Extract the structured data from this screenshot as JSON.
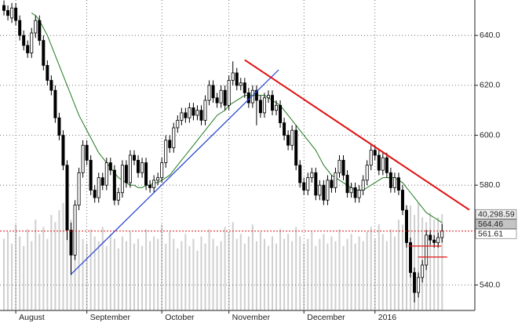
{
  "chart_data": {
    "type": "candlestick",
    "categories": [
      null,
      null,
      null,
      "August",
      null,
      null,
      null,
      null,
      null,
      null,
      null,
      null,
      null,
      null,
      null,
      null,
      null,
      null,
      null,
      null,
      null,
      "September",
      null,
      null,
      null,
      null,
      null,
      null,
      null,
      null,
      null,
      null,
      null,
      null,
      null,
      null,
      null,
      null,
      null,
      null,
      "October",
      null,
      null,
      null,
      null,
      null,
      null,
      null,
      null,
      null,
      null,
      null,
      null,
      null,
      null,
      null,
      null,
      "November",
      null,
      null,
      null,
      null,
      null,
      null,
      null,
      null,
      null,
      null,
      null,
      null,
      null,
      null,
      null,
      null,
      null,
      null,
      "December",
      null,
      null,
      null,
      null,
      null,
      null,
      null,
      null,
      null,
      null,
      null,
      null,
      null,
      null,
      null,
      null,
      null,
      "2016",
      null,
      null,
      null,
      null,
      null,
      null,
      null,
      null,
      null,
      null,
      null,
      null,
      null,
      null,
      null,
      null,
      null
    ],
    "open": [
      652,
      650,
      647,
      651,
      646,
      640,
      636,
      633,
      641,
      646,
      638,
      628,
      622,
      618,
      607,
      600,
      588,
      562,
      552,
      572,
      585,
      596,
      590,
      578,
      575,
      583,
      580,
      589,
      586,
      574,
      577,
      588,
      581,
      592,
      590,
      585,
      589,
      580,
      579,
      582,
      583,
      589,
      598,
      595,
      603,
      606,
      609,
      607,
      611,
      608,
      610,
      606,
      614,
      620,
      615,
      613,
      618,
      612,
      622,
      625,
      620,
      621,
      617,
      613,
      618,
      614,
      609,
      615,
      616,
      610,
      612,
      605,
      600,
      596,
      602,
      588,
      581,
      578,
      583,
      585,
      576,
      580,
      574,
      582,
      579,
      585,
      590,
      584,
      577,
      579,
      575,
      578,
      582,
      588,
      594,
      592,
      586,
      591,
      585,
      579,
      583,
      578,
      570,
      557,
      545,
      537,
      543,
      548,
      560,
      558,
      557,
      559
    ],
    "high": [
      654,
      652,
      653,
      653,
      648,
      642,
      638,
      643,
      648,
      648,
      640,
      630,
      624,
      620,
      609,
      602,
      590,
      565,
      574,
      587,
      598,
      598,
      592,
      580,
      585,
      585,
      591,
      591,
      588,
      579,
      590,
      590,
      594,
      594,
      592,
      591,
      591,
      582,
      584,
      585,
      591,
      600,
      600,
      605,
      608,
      611,
      611,
      613,
      613,
      612,
      612,
      616,
      622,
      622,
      617,
      620,
      620,
      624,
      629.6,
      627,
      623,
      623,
      619,
      620,
      620,
      616,
      617,
      618,
      618,
      614,
      614,
      607,
      602,
      604,
      604,
      590,
      583,
      585,
      587,
      587,
      582,
      582,
      584,
      584,
      587,
      592,
      592,
      586,
      581,
      581,
      580,
      584,
      590,
      596,
      596,
      594,
      593,
      593,
      587,
      585,
      585,
      580,
      572,
      559,
      547,
      545,
      550,
      562,
      562,
      560,
      561,
      564.46
    ],
    "low": [
      648,
      646,
      645,
      644,
      638,
      634,
      631,
      631,
      639,
      636,
      626,
      620,
      616,
      605,
      598,
      586,
      558,
      544,
      550,
      570,
      583,
      588,
      576,
      573,
      573,
      578,
      578,
      584,
      572,
      572,
      575,
      579,
      579,
      588,
      583,
      583,
      578,
      577,
      577,
      580,
      581,
      587,
      593,
      593,
      601,
      604,
      605,
      605,
      606,
      606,
      604,
      604,
      612,
      613,
      611,
      611,
      610,
      610,
      620,
      618,
      618,
      615,
      611,
      611,
      604,
      607,
      607,
      613,
      608,
      608,
      603,
      598,
      594,
      594,
      586,
      579,
      576,
      576,
      581,
      574,
      574,
      572,
      572,
      577,
      577,
      583,
      582,
      575,
      575,
      573,
      573,
      576,
      580,
      586,
      590,
      584,
      584,
      583,
      577,
      577,
      576,
      568,
      555,
      543,
      533,
      535,
      541,
      546,
      556,
      555,
      555,
      557
    ],
    "close": [
      650,
      648,
      651,
      646,
      640,
      636,
      633,
      641,
      646,
      638,
      628,
      622,
      618,
      607,
      600,
      588,
      562,
      552,
      572,
      585,
      596,
      590,
      578,
      575,
      583,
      580,
      589,
      586,
      574,
      577,
      588,
      581,
      592,
      590,
      585,
      589,
      580,
      579,
      582,
      583,
      589,
      598,
      595,
      603,
      606,
      609,
      607,
      611,
      608,
      610,
      606,
      614,
      620,
      615,
      613,
      618,
      612,
      622,
      625,
      620,
      621,
      617,
      613,
      618,
      614,
      609,
      615,
      616,
      610,
      612,
      605,
      600,
      596,
      602,
      588,
      581,
      578,
      583,
      585,
      576,
      580,
      574,
      582,
      579,
      585,
      590,
      584,
      577,
      579,
      575,
      578,
      582,
      588,
      594,
      592,
      586,
      591,
      585,
      579,
      583,
      578,
      570,
      557,
      545,
      537,
      543,
      548,
      560,
      558,
      557,
      559,
      561.61
    ],
    "volume": [
      30000,
      33000,
      28000,
      36000,
      31000,
      27000,
      34000,
      29000,
      38000,
      32000,
      35000,
      30000,
      40000,
      37000,
      42000,
      45000,
      41000,
      38000,
      36000,
      33000,
      30000,
      28000,
      34000,
      31000,
      29000,
      35000,
      27000,
      32000,
      30000,
      26000,
      31000,
      29000,
      33000,
      28000,
      30000,
      27000,
      34000,
      29000,
      31000,
      30000,
      36000,
      28000,
      33000,
      30000,
      26000,
      29000,
      32000,
      27000,
      30000,
      25000,
      31000,
      28000,
      34000,
      30000,
      27000,
      29000,
      35000,
      33000,
      37000,
      30000,
      32000,
      28000,
      31000,
      36000,
      29000,
      33000,
      30000,
      27000,
      31000,
      28000,
      34000,
      30000,
      32000,
      29000,
      35000,
      31000,
      28000,
      30000,
      33000,
      27000,
      30000,
      32000,
      28000,
      31000,
      29000,
      34000,
      27000,
      30000,
      32000,
      28000,
      31000,
      29000,
      33000,
      35000,
      30000,
      36000,
      32000,
      29000,
      34000,
      31000,
      38000,
      36000,
      42000,
      44000,
      40000,
      45000,
      39000,
      37000,
      41000,
      38000,
      39000,
      40298.59
    ],
    "volume_color": "#cfcfcf",
    "volume_lim": [
      0,
      130000
    ],
    "ma": {
      "color": "#1f7a1f",
      "values": [
        null,
        null,
        null,
        null,
        null,
        null,
        null,
        649,
        648,
        646,
        643,
        640,
        636,
        632,
        628,
        624,
        620,
        616,
        612,
        608,
        605,
        602,
        599,
        596,
        593,
        591,
        589,
        587,
        585,
        583,
        582,
        581,
        580,
        580,
        579,
        579,
        580,
        580,
        581,
        581,
        582,
        583,
        584,
        586,
        588,
        590,
        592,
        594,
        596,
        598,
        600,
        602,
        604,
        606,
        608,
        609,
        610,
        612,
        613,
        614,
        615,
        616,
        616,
        616,
        616,
        616,
        616,
        615,
        614,
        613,
        612,
        610,
        608,
        606,
        604,
        602,
        600,
        598,
        596,
        594,
        591,
        588,
        586,
        584,
        583,
        582,
        581,
        580,
        579,
        578,
        578,
        578,
        579,
        580,
        581,
        582,
        583,
        583,
        583,
        583,
        582,
        581,
        579,
        577,
        575,
        573,
        571,
        569,
        568,
        567,
        566,
        565
      ]
    },
    "xlim": [
      -1,
      119.3
    ],
    "ylim": [
      529.8,
      654.2
    ],
    "yticks": [
      {
        "value": 540,
        "label": "540.0"
      },
      {
        "value": 580,
        "label": "580.0"
      },
      {
        "value": 600,
        "label": "600.0"
      },
      {
        "value": 620,
        "label": "620.0"
      },
      {
        "value": 640,
        "label": "640.0"
      }
    ],
    "grid": true,
    "trend_lines": [
      {
        "color": "#1f3fd0",
        "x": [
          17,
          69.6
        ],
        "y": [
          544.3,
          626.2
        ]
      },
      {
        "color": "#e01010",
        "x": [
          61,
          117.9
        ],
        "y": [
          630.2,
          570.1
        ]
      }
    ],
    "levels": [
      {
        "color": "#e01010",
        "x": [
          102.5,
          110.8
        ],
        "y": 555.6
      },
      {
        "color": "#e01010",
        "x": [
          104.9,
          112.3
        ],
        "y": 551.2
      }
    ],
    "price_line": {
      "value": 561.61,
      "color": "#e01010"
    },
    "tags": [
      {
        "value": 40298.59,
        "label": "40,298.59",
        "axis": "volume",
        "fill": "#ececec"
      },
      {
        "value": 564.46,
        "label": "564.46",
        "fill": "#c4c4c4"
      },
      {
        "value": 561.61,
        "label": "561.61",
        "fill": "#ffffff"
      }
    ]
  }
}
